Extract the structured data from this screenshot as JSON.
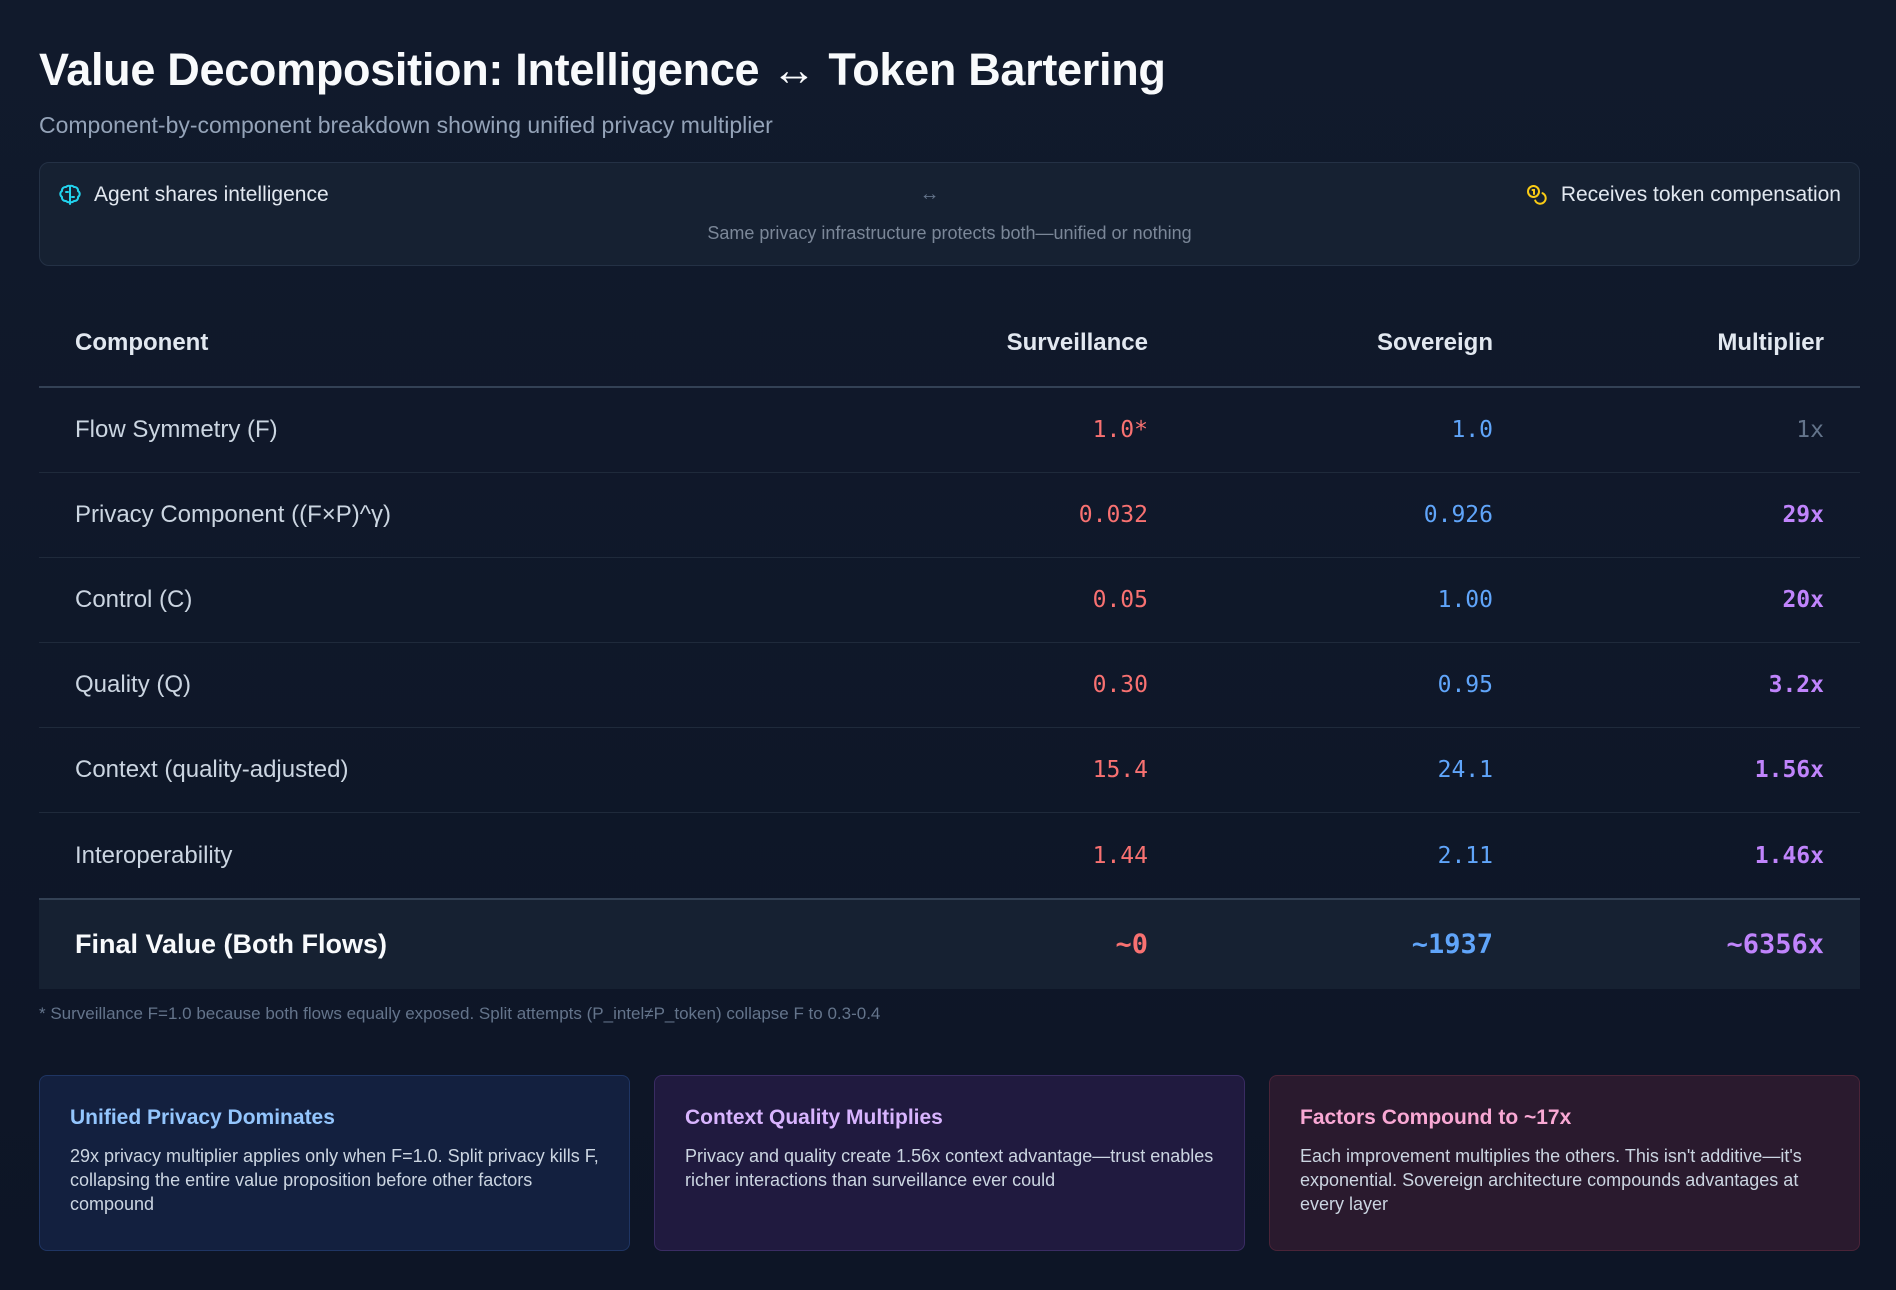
{
  "header": {
    "title": "Value Decomposition: Intelligence ↔ Token Bartering",
    "subtitle": "Component-by-component breakdown showing unified privacy multiplier"
  },
  "flow": {
    "left_label": "Agent shares intelligence",
    "left_icon": "brain-icon",
    "arrow": "↔",
    "right_label": "Receives token compensation",
    "right_icon": "coins-icon",
    "note": "Same privacy infrastructure protects both—unified or nothing"
  },
  "chart_data": {
    "type": "table",
    "columns": [
      "Component",
      "Surveillance",
      "Sovereign",
      "Multiplier"
    ],
    "rows": [
      {
        "component": "Flow Symmetry (F)",
        "surveillance": "1.0*",
        "sovereign": "1.0",
        "multiplier": "1x"
      },
      {
        "component": "Privacy Component ((F×P)^γ)",
        "surveillance": "0.032",
        "sovereign": "0.926",
        "multiplier": "29x"
      },
      {
        "component": "Control (C)",
        "surveillance": "0.05",
        "sovereign": "1.00",
        "multiplier": "20x"
      },
      {
        "component": "Quality (Q)",
        "surveillance": "0.30",
        "sovereign": "0.95",
        "multiplier": "3.2x"
      },
      {
        "component": "Context (quality-adjusted)",
        "surveillance": "15.4",
        "sovereign": "24.1",
        "multiplier": "1.56x"
      },
      {
        "component": "Interoperability",
        "surveillance": "1.44",
        "sovereign": "2.11",
        "multiplier": "1.46x"
      }
    ],
    "final": {
      "component": "Final Value (Both Flows)",
      "surveillance": "~0",
      "sovereign": "~1937",
      "multiplier": "~6356x"
    },
    "colors": {
      "surveillance": "#f87171",
      "sovereign": "#60a5fa",
      "multiplier": "#c084fc"
    }
  },
  "footnote": "* Surveillance F=1.0 because both flows equally exposed. Split attempts (P_intel≠P_token) collapse F to 0.3-0.4",
  "cards": [
    {
      "title": "Unified Privacy Dominates",
      "text": "29x privacy multiplier applies only when F=1.0. Split privacy kills F, collapsing the entire value proposition before other factors compound"
    },
    {
      "title": "Context Quality Multiplies",
      "text": "Privacy and quality create 1.56x context advantage—trust enables richer interactions than surveillance ever could"
    },
    {
      "title": "Factors Compound to ~17x",
      "text": "Each improvement multiplies the others. This isn't additive—it's exponential. Sovereign architecture compounds advantages at every layer"
    }
  ]
}
